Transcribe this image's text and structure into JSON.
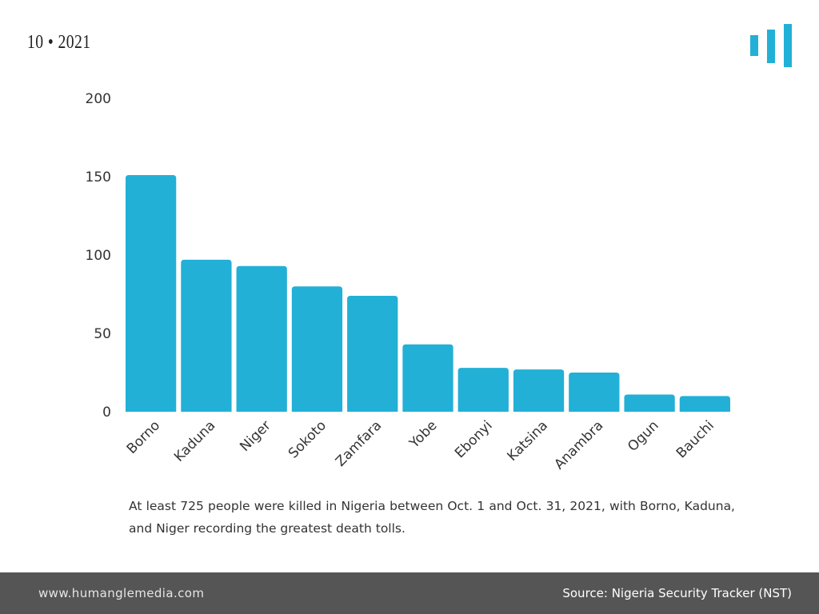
{
  "header": {
    "period": "10 • 2021"
  },
  "logo": {
    "icon": "bar-chart-logo-icon",
    "color": "#22b0d6"
  },
  "chart_data": {
    "type": "bar",
    "title": "",
    "xlabel": "",
    "ylabel": "",
    "ylim": [
      0,
      200
    ],
    "y_ticks": [
      0,
      50,
      100,
      150,
      200
    ],
    "grid": false,
    "bar_color": "#22b0d6",
    "categories": [
      "Borno",
      "Kaduna",
      "Niger",
      "Sokoto",
      "Zamfara",
      "Yobe",
      "Ebonyi",
      "Katsina",
      "Anambra",
      "Ogun",
      "Bauchi"
    ],
    "values": [
      151,
      97,
      93,
      80,
      74,
      43,
      28,
      27,
      25,
      11,
      10
    ]
  },
  "caption": "At least 725 people were killed in Nigeria between Oct. 1 and Oct. 31, 2021, with Borno, Kaduna, and Niger recording the greatest death tolls.",
  "footer": {
    "website": "www.humanglemedia.com",
    "source": "Source: Nigeria Security Tracker (NST)",
    "background_color": "#555555"
  }
}
